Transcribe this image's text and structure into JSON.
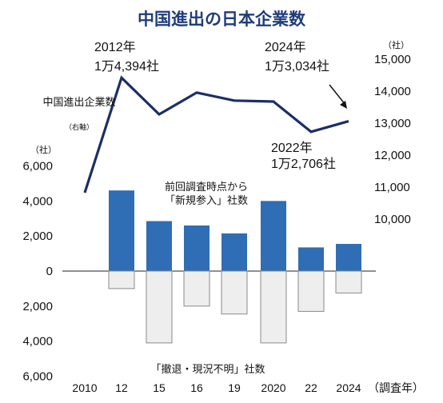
{
  "title": "中国進出の日本企業数",
  "chart_data": {
    "type": "bar+line",
    "categories": [
      "2010",
      "12",
      "15",
      "16",
      "19",
      "2020",
      "22",
      "2024"
    ],
    "x_unit": "（調査年）",
    "left_axis": {
      "unit": "（社）",
      "ticks": [
        "6,000",
        "4,000",
        "2,000",
        "0",
        "2,000",
        "4,000",
        "6,000"
      ],
      "range": [
        -6000,
        6000
      ]
    },
    "right_axis": {
      "unit": "（社）",
      "ticks": [
        "15,000",
        "14,000",
        "13,000",
        "12,000",
        "11,000",
        "10,000"
      ],
      "range": [
        10000,
        15000
      ]
    },
    "series": [
      {
        "name": "「新規参入」社数",
        "label_prefix": "前回調査時点から",
        "type": "bar",
        "axis": "left",
        "color": "#2f6db5",
        "values": [
          null,
          4600,
          2850,
          2600,
          2150,
          4000,
          1350,
          1550
        ]
      },
      {
        "name": "「撤退・現況不明」社数",
        "type": "bar",
        "axis": "left",
        "color": "#eeeeee",
        "values": [
          null,
          -1000,
          -4100,
          -2000,
          -2450,
          -4100,
          -2300,
          -1250
        ]
      },
      {
        "name": "中国進出企業数",
        "note": "（右軸）",
        "type": "line",
        "axis": "right",
        "color": "#1b2f66",
        "values": [
          10800,
          14394,
          13250,
          13930,
          13680,
          13650,
          12706,
          13034
        ]
      }
    ],
    "annotations": [
      {
        "year": "2012年",
        "value": "1万4,394社"
      },
      {
        "year": "2024年",
        "value": "1万3,034社"
      },
      {
        "year": "2022年",
        "value": "1万2,706社"
      }
    ]
  }
}
